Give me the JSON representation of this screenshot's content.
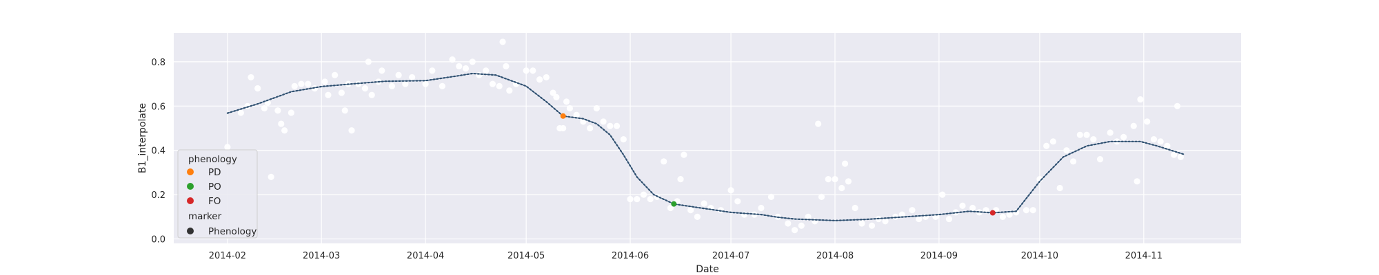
{
  "chart_data": {
    "type": "scatter",
    "xlabel": "Date",
    "ylabel": "B1_interpolate",
    "x_tick_labels": [
      "2014-02",
      "2014-03",
      "2014-04",
      "2014-05",
      "2014-06",
      "2014-07",
      "2014-08",
      "2014-09",
      "2014-10",
      "2014-11"
    ],
    "x_tick_dates": [
      "2014-02-01",
      "2014-03-01",
      "2014-04-01",
      "2014-05-01",
      "2014-06-01",
      "2014-07-01",
      "2014-08-01",
      "2014-09-01",
      "2014-10-01",
      "2014-11-01"
    ],
    "y_tick_labels": [
      "0.0",
      "0.2",
      "0.4",
      "0.6",
      "0.8"
    ],
    "y_tick_values": [
      0.0,
      0.2,
      0.4,
      0.6,
      0.8
    ],
    "xlim": [
      "2014-01-16",
      "2014-11-30"
    ],
    "ylim": [
      -0.02,
      0.93
    ],
    "grid": true,
    "background": "#eaeaf2",
    "legend_placement": "lower-left",
    "interpolated_line": {
      "color": "#4c6e8d",
      "points": [
        [
          "2014-02-01",
          0.568
        ],
        [
          "2014-02-10",
          0.61
        ],
        [
          "2014-02-20",
          0.665
        ],
        [
          "2014-03-01",
          0.688
        ],
        [
          "2014-03-10",
          0.7
        ],
        [
          "2014-03-20",
          0.712
        ],
        [
          "2014-04-01",
          0.715
        ],
        [
          "2014-04-10",
          0.735
        ],
        [
          "2014-04-15",
          0.747
        ],
        [
          "2014-04-22",
          0.74
        ],
        [
          "2014-05-01",
          0.69
        ],
        [
          "2014-05-07",
          0.62
        ],
        [
          "2014-05-12",
          0.555
        ],
        [
          "2014-05-18",
          0.543
        ],
        [
          "2014-05-22",
          0.52
        ],
        [
          "2014-05-26",
          0.47
        ],
        [
          "2014-05-30",
          0.38
        ],
        [
          "2014-06-03",
          0.28
        ],
        [
          "2014-06-08",
          0.2
        ],
        [
          "2014-06-14",
          0.158
        ],
        [
          "2014-06-22",
          0.14
        ],
        [
          "2014-07-01",
          0.12
        ],
        [
          "2014-07-10",
          0.11
        ],
        [
          "2014-07-15",
          0.098
        ],
        [
          "2014-07-20",
          0.09
        ],
        [
          "2014-08-01",
          0.083
        ],
        [
          "2014-08-10",
          0.088
        ],
        [
          "2014-08-20",
          0.098
        ],
        [
          "2014-09-01",
          0.11
        ],
        [
          "2014-09-10",
          0.125
        ],
        [
          "2014-09-17",
          0.118
        ],
        [
          "2014-09-24",
          0.125
        ],
        [
          "2014-10-01",
          0.26
        ],
        [
          "2014-10-08",
          0.37
        ],
        [
          "2014-10-15",
          0.42
        ],
        [
          "2014-10-22",
          0.44
        ],
        [
          "2014-10-31",
          0.44
        ],
        [
          "2014-11-05",
          0.42
        ],
        [
          "2014-11-13",
          0.382
        ]
      ]
    },
    "observations": {
      "color": "#ffffff",
      "points": [
        [
          "2014-02-01",
          0.415
        ],
        [
          "2014-02-05",
          0.57
        ],
        [
          "2014-02-07",
          0.6
        ],
        [
          "2014-02-08",
          0.73
        ],
        [
          "2014-02-10",
          0.68
        ],
        [
          "2014-02-12",
          0.59
        ],
        [
          "2014-02-13",
          0.615
        ],
        [
          "2014-02-14",
          0.28
        ],
        [
          "2014-02-16",
          0.58
        ],
        [
          "2014-02-17",
          0.52
        ],
        [
          "2014-02-18",
          0.49
        ],
        [
          "2014-02-20",
          0.57
        ],
        [
          "2014-02-21",
          0.69
        ],
        [
          "2014-02-23",
          0.7
        ],
        [
          "2014-02-25",
          0.7
        ],
        [
          "2014-02-27",
          0.68
        ],
        [
          "2014-03-02",
          0.71
        ],
        [
          "2014-03-03",
          0.65
        ],
        [
          "2014-03-05",
          0.74
        ],
        [
          "2014-03-07",
          0.66
        ],
        [
          "2014-03-08",
          0.58
        ],
        [
          "2014-03-09",
          0.7
        ],
        [
          "2014-03-10",
          0.49
        ],
        [
          "2014-03-12",
          0.7
        ],
        [
          "2014-03-14",
          0.68
        ],
        [
          "2014-03-15",
          0.8
        ],
        [
          "2014-03-16",
          0.65
        ],
        [
          "2014-03-18",
          0.71
        ],
        [
          "2014-03-19",
          0.76
        ],
        [
          "2014-03-22",
          0.69
        ],
        [
          "2014-03-24",
          0.74
        ],
        [
          "2014-03-26",
          0.7
        ],
        [
          "2014-03-28",
          0.73
        ],
        [
          "2014-04-01",
          0.7
        ],
        [
          "2014-04-03",
          0.76
        ],
        [
          "2014-04-06",
          0.69
        ],
        [
          "2014-04-09",
          0.81
        ],
        [
          "2014-04-11",
          0.78
        ],
        [
          "2014-04-13",
          0.77
        ],
        [
          "2014-04-15",
          0.8
        ],
        [
          "2014-04-17",
          0.74
        ],
        [
          "2014-04-19",
          0.76
        ],
        [
          "2014-04-21",
          0.7
        ],
        [
          "2014-04-23",
          0.69
        ],
        [
          "2014-04-24",
          0.89
        ],
        [
          "2014-04-25",
          0.78
        ],
        [
          "2014-04-26",
          0.67
        ],
        [
          "2014-04-28",
          0.7
        ],
        [
          "2014-05-01",
          0.76
        ],
        [
          "2014-05-03",
          0.76
        ],
        [
          "2014-05-05",
          0.72
        ],
        [
          "2014-05-07",
          0.73
        ],
        [
          "2014-05-09",
          0.66
        ],
        [
          "2014-05-10",
          0.64
        ],
        [
          "2014-05-11",
          0.5
        ],
        [
          "2014-05-12",
          0.5
        ],
        [
          "2014-05-13",
          0.62
        ],
        [
          "2014-05-14",
          0.59
        ],
        [
          "2014-05-16",
          0.56
        ],
        [
          "2014-05-18",
          0.53
        ],
        [
          "2014-05-20",
          0.5
        ],
        [
          "2014-05-22",
          0.59
        ],
        [
          "2014-05-24",
          0.53
        ],
        [
          "2014-05-26",
          0.51
        ],
        [
          "2014-05-28",
          0.51
        ],
        [
          "2014-05-30",
          0.45
        ],
        [
          "2014-06-01",
          0.18
        ],
        [
          "2014-06-03",
          0.18
        ],
        [
          "2014-06-05",
          0.2
        ],
        [
          "2014-06-07",
          0.18
        ],
        [
          "2014-06-09",
          0.19
        ],
        [
          "2014-06-11",
          0.35
        ],
        [
          "2014-06-13",
          0.14
        ],
        [
          "2014-06-15",
          0.17
        ],
        [
          "2014-06-16",
          0.27
        ],
        [
          "2014-06-17",
          0.38
        ],
        [
          "2014-06-19",
          0.13
        ],
        [
          "2014-06-21",
          0.1
        ],
        [
          "2014-06-23",
          0.16
        ],
        [
          "2014-06-25",
          0.14
        ],
        [
          "2014-06-28",
          0.13
        ],
        [
          "2014-07-01",
          0.22
        ],
        [
          "2014-07-03",
          0.17
        ],
        [
          "2014-07-05",
          0.11
        ],
        [
          "2014-07-08",
          0.11
        ],
        [
          "2014-07-10",
          0.14
        ],
        [
          "2014-07-13",
          0.19
        ],
        [
          "2014-07-15",
          0.1
        ],
        [
          "2014-07-18",
          0.07
        ],
        [
          "2014-07-20",
          0.04
        ],
        [
          "2014-07-22",
          0.06
        ],
        [
          "2014-07-24",
          0.1
        ],
        [
          "2014-07-26",
          0.08
        ],
        [
          "2014-07-27",
          0.52
        ],
        [
          "2014-07-28",
          0.19
        ],
        [
          "2014-07-30",
          0.27
        ],
        [
          "2014-08-01",
          0.27
        ],
        [
          "2014-08-03",
          0.23
        ],
        [
          "2014-08-04",
          0.34
        ],
        [
          "2014-08-05",
          0.26
        ],
        [
          "2014-08-07",
          0.14
        ],
        [
          "2014-08-09",
          0.07
        ],
        [
          "2014-08-12",
          0.06
        ],
        [
          "2014-08-14",
          0.09
        ],
        [
          "2014-08-16",
          0.08
        ],
        [
          "2014-08-19",
          0.1
        ],
        [
          "2014-08-21",
          0.11
        ],
        [
          "2014-08-24",
          0.13
        ],
        [
          "2014-08-26",
          0.09
        ],
        [
          "2014-08-28",
          0.1
        ],
        [
          "2014-08-31",
          0.1
        ],
        [
          "2014-09-02",
          0.2
        ],
        [
          "2014-09-04",
          0.09
        ],
        [
          "2014-09-06",
          0.12
        ],
        [
          "2014-09-08",
          0.15
        ],
        [
          "2014-09-11",
          0.14
        ],
        [
          "2014-09-13",
          0.12
        ],
        [
          "2014-09-15",
          0.13
        ],
        [
          "2014-09-18",
          0.13
        ],
        [
          "2014-09-20",
          0.1
        ],
        [
          "2014-09-22",
          0.11
        ],
        [
          "2014-09-24",
          0.12
        ],
        [
          "2014-09-27",
          0.13
        ],
        [
          "2014-09-29",
          0.13
        ],
        [
          "2014-10-01",
          0.27
        ],
        [
          "2014-10-03",
          0.42
        ],
        [
          "2014-10-05",
          0.44
        ],
        [
          "2014-10-07",
          0.23
        ],
        [
          "2014-10-09",
          0.4
        ],
        [
          "2014-10-11",
          0.35
        ],
        [
          "2014-10-13",
          0.47
        ],
        [
          "2014-10-15",
          0.47
        ],
        [
          "2014-10-17",
          0.45
        ],
        [
          "2014-10-19",
          0.36
        ],
        [
          "2014-10-22",
          0.48
        ],
        [
          "2014-10-24",
          0.44
        ],
        [
          "2014-10-26",
          0.46
        ],
        [
          "2014-10-29",
          0.51
        ],
        [
          "2014-10-30",
          0.26
        ],
        [
          "2014-10-31",
          0.63
        ],
        [
          "2014-11-02",
          0.53
        ],
        [
          "2014-11-04",
          0.45
        ],
        [
          "2014-11-06",
          0.44
        ],
        [
          "2014-11-08",
          0.42
        ],
        [
          "2014-11-10",
          0.38
        ],
        [
          "2014-11-11",
          0.6
        ],
        [
          "2014-11-12",
          0.37
        ]
      ]
    },
    "phenology_points": [
      {
        "label": "PD",
        "date": "2014-05-12",
        "value": 0.555,
        "color": "#ff7f0e"
      },
      {
        "label": "PO",
        "date": "2014-06-14",
        "value": 0.158,
        "color": "#2ca02c"
      },
      {
        "label": "FO",
        "date": "2014-09-17",
        "value": 0.118,
        "color": "#d62728"
      }
    ],
    "legend": {
      "hue_title": "phenology",
      "entries": [
        {
          "label": "PD",
          "color": "#ff7f0e"
        },
        {
          "label": "PO",
          "color": "#2ca02c"
        },
        {
          "label": "FO",
          "color": "#d62728"
        }
      ],
      "style_title": "marker",
      "style_entries": [
        {
          "label": "Phenology",
          "color": "#333333"
        }
      ]
    }
  }
}
